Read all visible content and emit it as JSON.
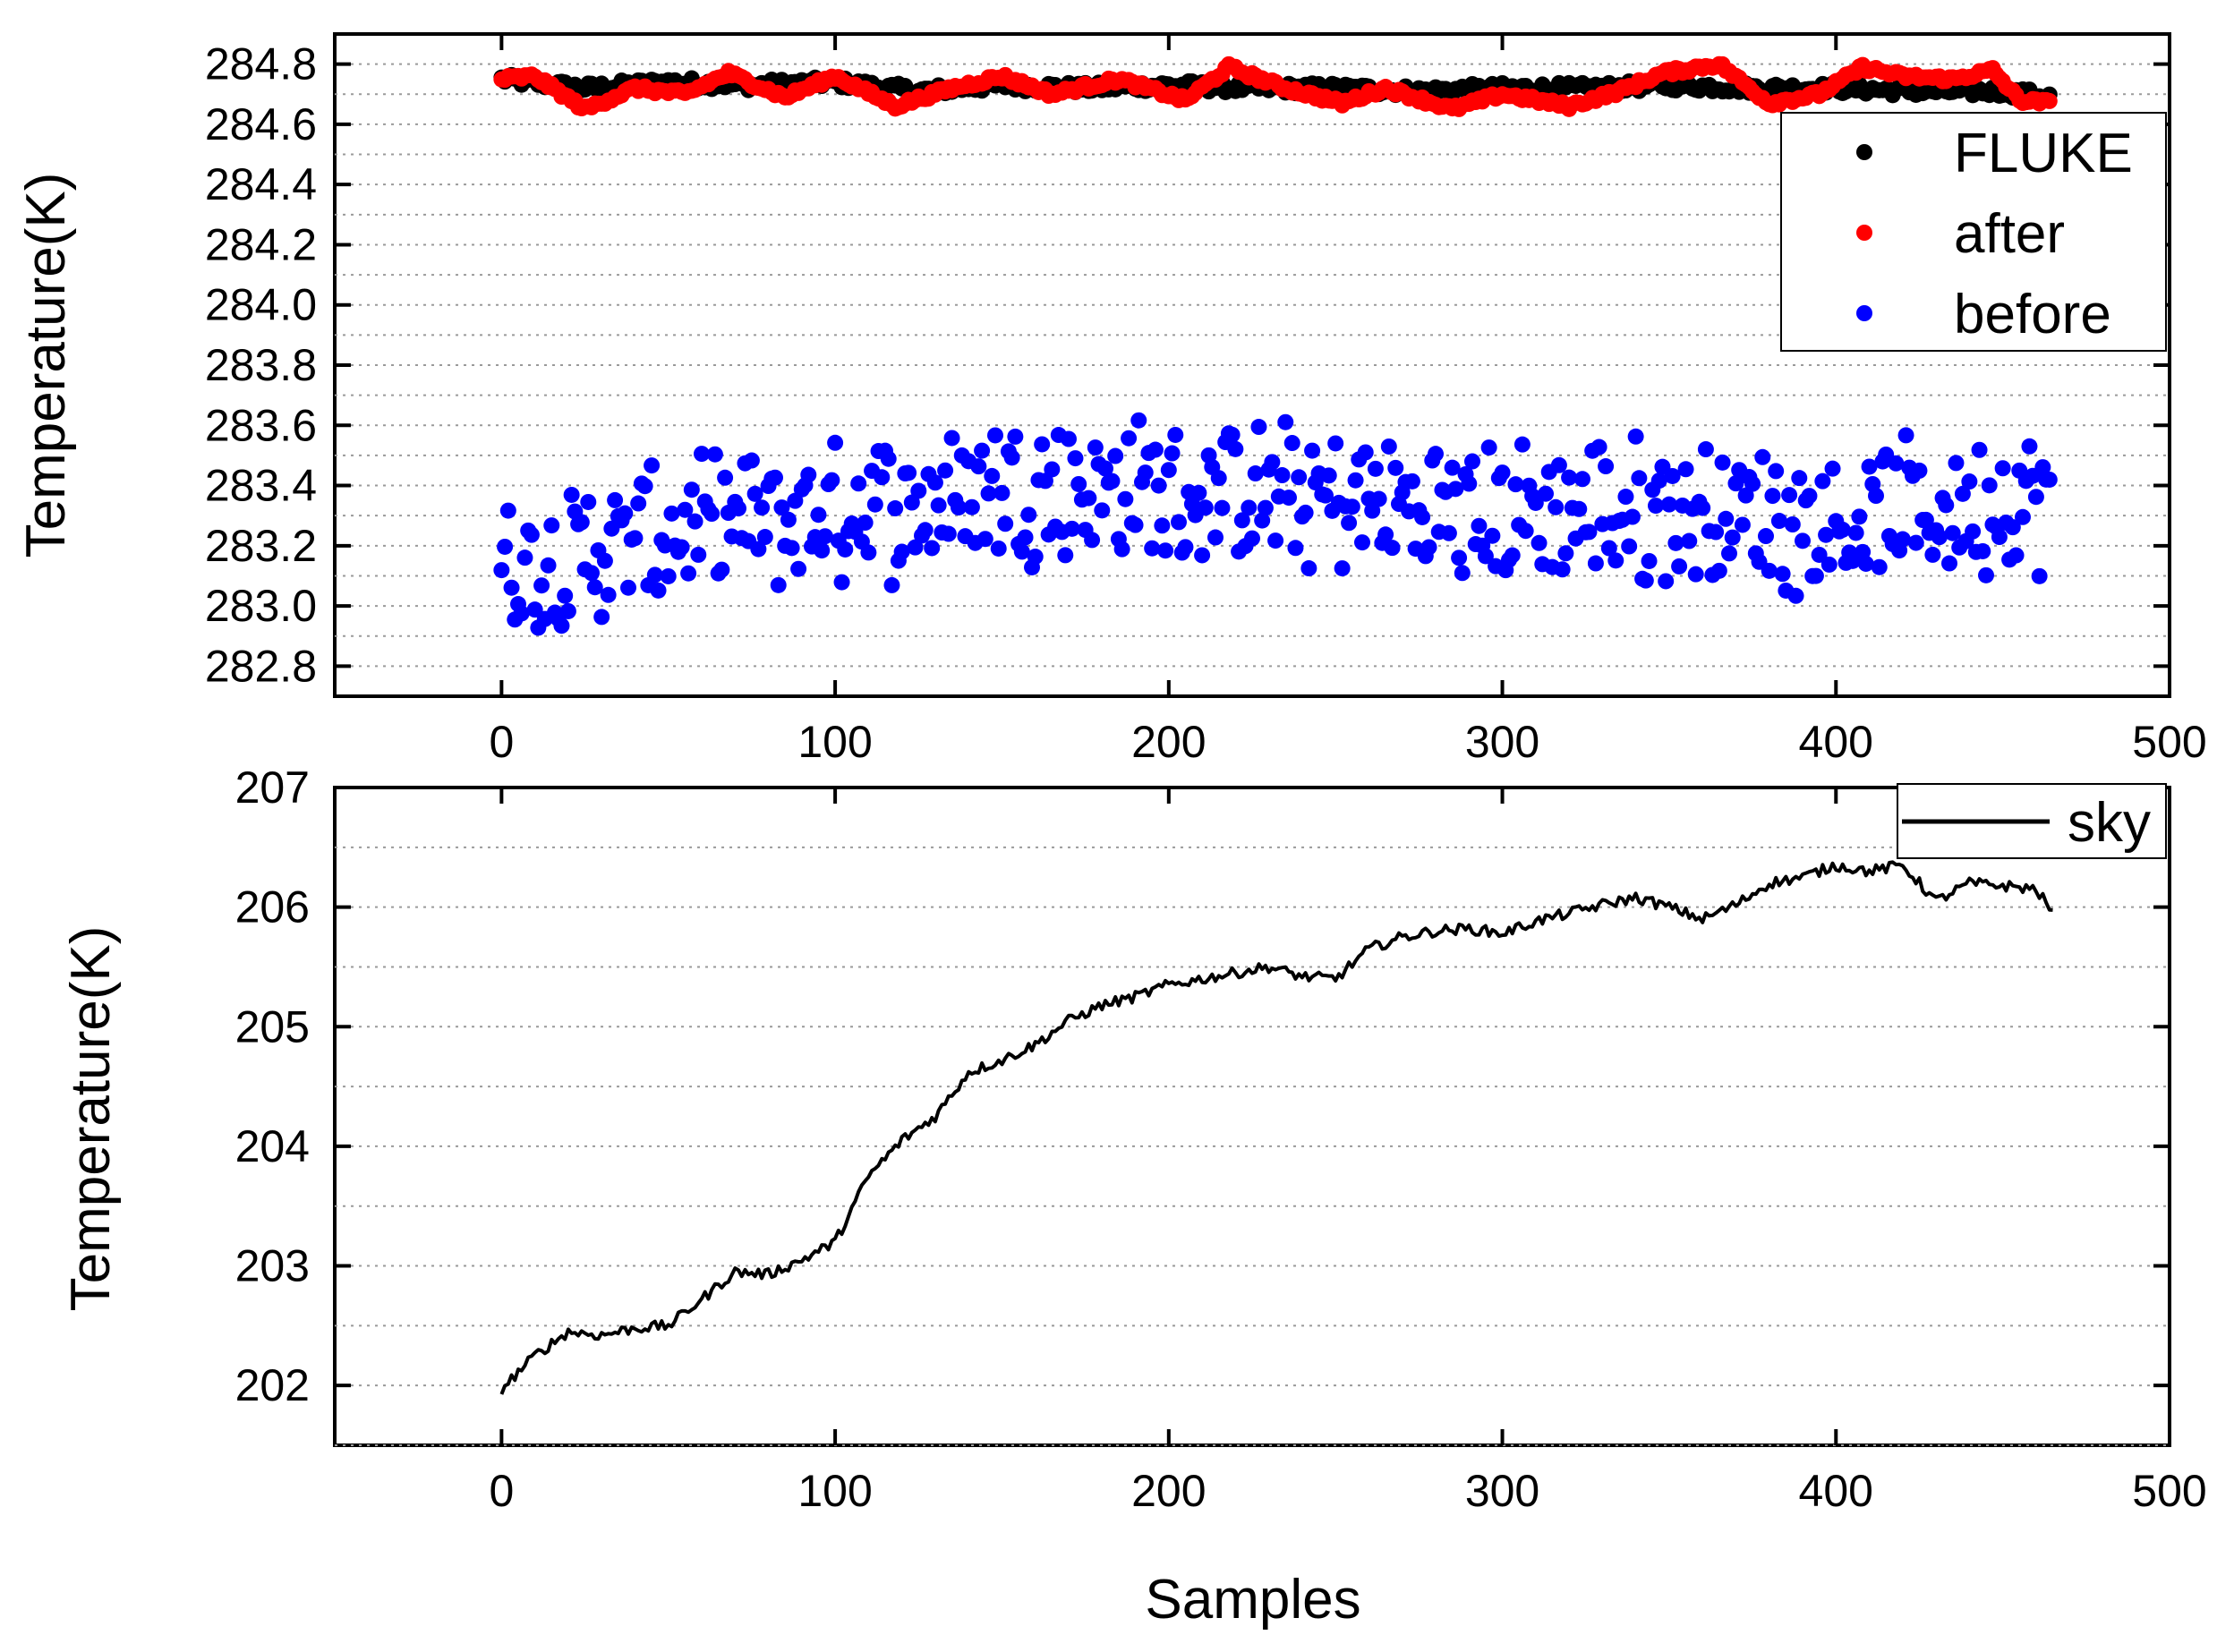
{
  "chart_data": [
    {
      "type": "scatter",
      "xlabel": "",
      "ylabel": "Temperature(K)",
      "xlim": [
        -50,
        500
      ],
      "ylim": [
        282.7,
        284.9
      ],
      "xticks": [
        0,
        100,
        200,
        300,
        400,
        500
      ],
      "yticks": [
        282.8,
        283.0,
        283.2,
        283.4,
        283.6,
        283.8,
        284.0,
        284.2,
        284.4,
        284.6,
        284.8
      ],
      "ytick_labels": [
        "282.8",
        "283.0",
        "283.2",
        "283.4",
        "283.6",
        "283.8",
        "284.0",
        "284.2",
        "284.4",
        "284.6",
        "284.8"
      ],
      "grid": "horizontal dotted",
      "legend_position": "top-right",
      "series": [
        {
          "name": "FLUKE",
          "color": "#000000",
          "n": 465,
          "x_sample": [
            0,
            25,
            50,
            75,
            100,
            125,
            150,
            175,
            200,
            225,
            250,
            275,
            300,
            325,
            350,
            375,
            400,
            425,
            450,
            465
          ],
          "values": [
            284.75,
            284.72,
            284.74,
            284.73,
            284.74,
            284.71,
            284.73,
            284.72,
            284.73,
            284.72,
            284.72,
            284.71,
            284.72,
            284.72,
            284.73,
            284.72,
            284.72,
            284.71,
            284.71,
            284.69
          ]
        },
        {
          "name": "after",
          "color": "#ff0000",
          "n": 465,
          "x_sample": [
            0,
            10,
            25,
            40,
            55,
            68,
            85,
            100,
            118,
            135,
            150,
            165,
            185,
            205,
            218,
            235,
            252,
            265,
            285,
            300,
            320,
            335,
            348,
            365,
            380,
            395,
            408,
            420,
            435,
            447,
            455,
            465
          ],
          "values": [
            284.75,
            284.76,
            284.65,
            284.72,
            284.7,
            284.77,
            284.69,
            284.76,
            284.66,
            284.72,
            284.76,
            284.7,
            284.75,
            284.68,
            284.79,
            284.72,
            284.67,
            284.72,
            284.65,
            284.7,
            284.66,
            284.71,
            284.77,
            284.8,
            284.67,
            284.7,
            284.79,
            284.76,
            284.75,
            284.78,
            284.68,
            284.67
          ]
        },
        {
          "name": "before",
          "color": "#0000ff",
          "n": 465,
          "x_sample": [
            0,
            50,
            100,
            150,
            200,
            250,
            300,
            350,
            400,
            465
          ],
          "values": [
            283.1,
            283.24,
            283.3,
            283.4,
            283.38,
            283.35,
            283.3,
            283.32,
            283.28,
            283.35
          ],
          "y_range_approx": [
            282.8,
            283.72
          ]
        }
      ]
    },
    {
      "type": "line",
      "xlabel": "Samples",
      "ylabel": "Temperature(K)",
      "xlim": [
        -50,
        500
      ],
      "ylim": [
        201.5,
        207
      ],
      "xticks": [
        0,
        100,
        200,
        300,
        400,
        500
      ],
      "yticks": [
        202,
        203,
        204,
        205,
        206,
        207
      ],
      "grid": "horizontal dotted",
      "legend_position": "top-right",
      "series": [
        {
          "name": "sky",
          "color": "#000000",
          "x": [
            0,
            10,
            20,
            30,
            40,
            50,
            60,
            70,
            80,
            90,
            100,
            110,
            120,
            130,
            140,
            150,
            160,
            170,
            180,
            190,
            200,
            210,
            220,
            230,
            240,
            250,
            260,
            270,
            280,
            290,
            300,
            310,
            320,
            330,
            340,
            350,
            360,
            370,
            380,
            390,
            400,
            410,
            420,
            430,
            440,
            450,
            460,
            465
          ],
          "values": [
            201.97,
            202.25,
            202.45,
            202.42,
            202.48,
            202.5,
            202.72,
            202.95,
            202.93,
            203.05,
            203.2,
            203.75,
            204.05,
            204.25,
            204.62,
            204.72,
            204.85,
            205.05,
            205.18,
            205.25,
            205.35,
            205.4,
            205.45,
            205.5,
            205.42,
            205.4,
            205.65,
            205.75,
            205.8,
            205.82,
            205.78,
            205.88,
            205.95,
            206.02,
            206.08,
            206.0,
            205.9,
            206.02,
            206.2,
            206.25,
            206.35,
            206.3,
            206.35,
            206.05,
            206.2,
            206.18,
            206.15,
            205.95
          ]
        }
      ]
    }
  ]
}
